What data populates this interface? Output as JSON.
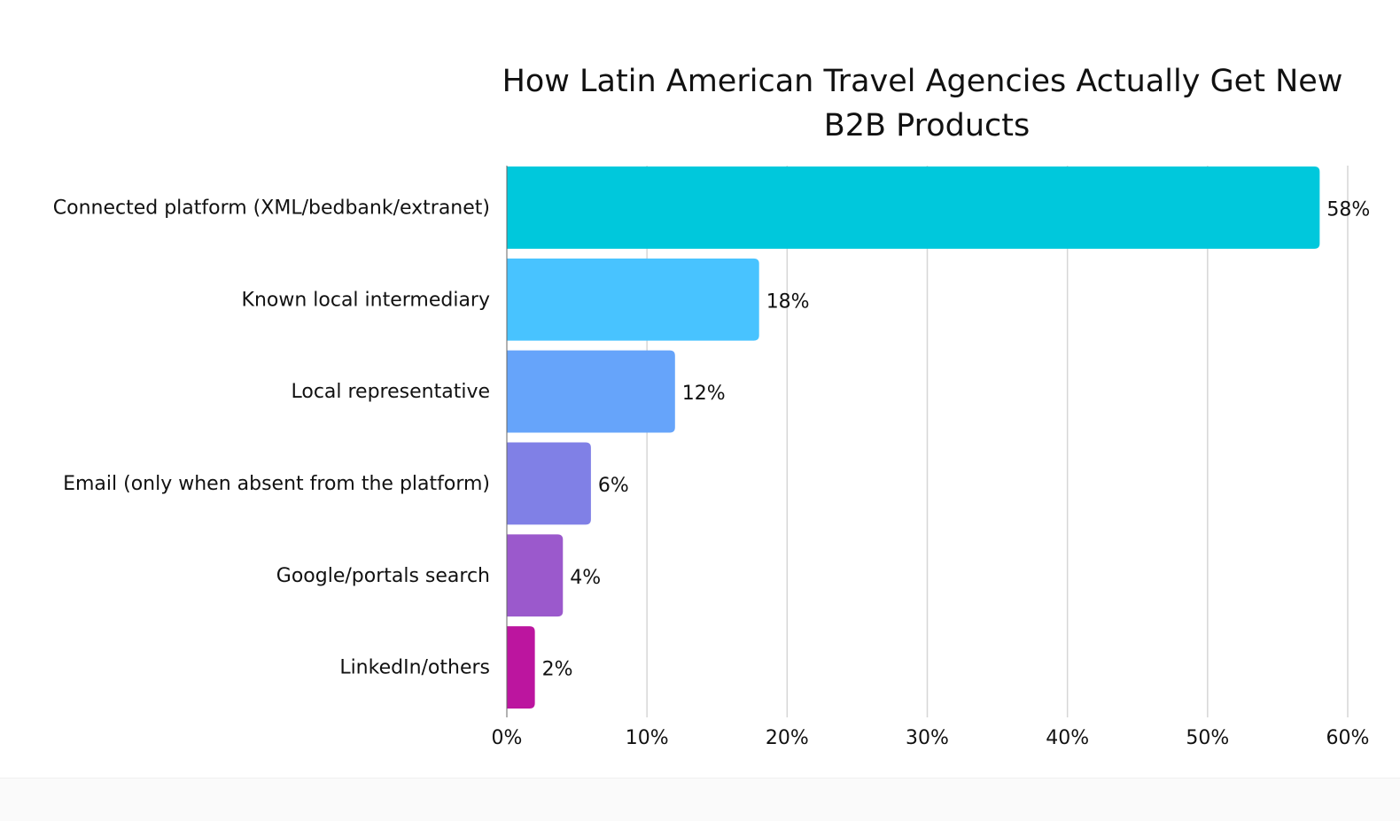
{
  "chart_data": {
    "type": "bar",
    "orientation": "horizontal",
    "title_lines": [
      "How Latin American Travel Agencies Actually Get New",
      "B2B Products"
    ],
    "categories": [
      "Connected platform (XML/bedbank/extranet)",
      "Known local intermediary",
      "Local representative",
      "Email (only when absent from the platform)",
      "Google/portals search",
      "LinkedIn/others"
    ],
    "values": [
      58,
      18,
      12,
      6,
      4,
      2
    ],
    "data_labels": [
      "58%",
      "18%",
      "12%",
      "6%",
      "4%",
      "2%"
    ],
    "colors": [
      "#00C8DC",
      "#48C3FF",
      "#66A4FA",
      "#8080E6",
      "#9B59CC",
      "#BC159F"
    ],
    "xlim": [
      0,
      60
    ],
    "xticks": [
      0,
      10,
      20,
      30,
      40,
      50,
      60
    ],
    "xtick_labels": [
      "0%",
      "10%",
      "20%",
      "30%",
      "40%",
      "50%",
      "60%"
    ],
    "xlabel": "",
    "ylabel": "",
    "grid": "vertical",
    "legend": "none"
  }
}
